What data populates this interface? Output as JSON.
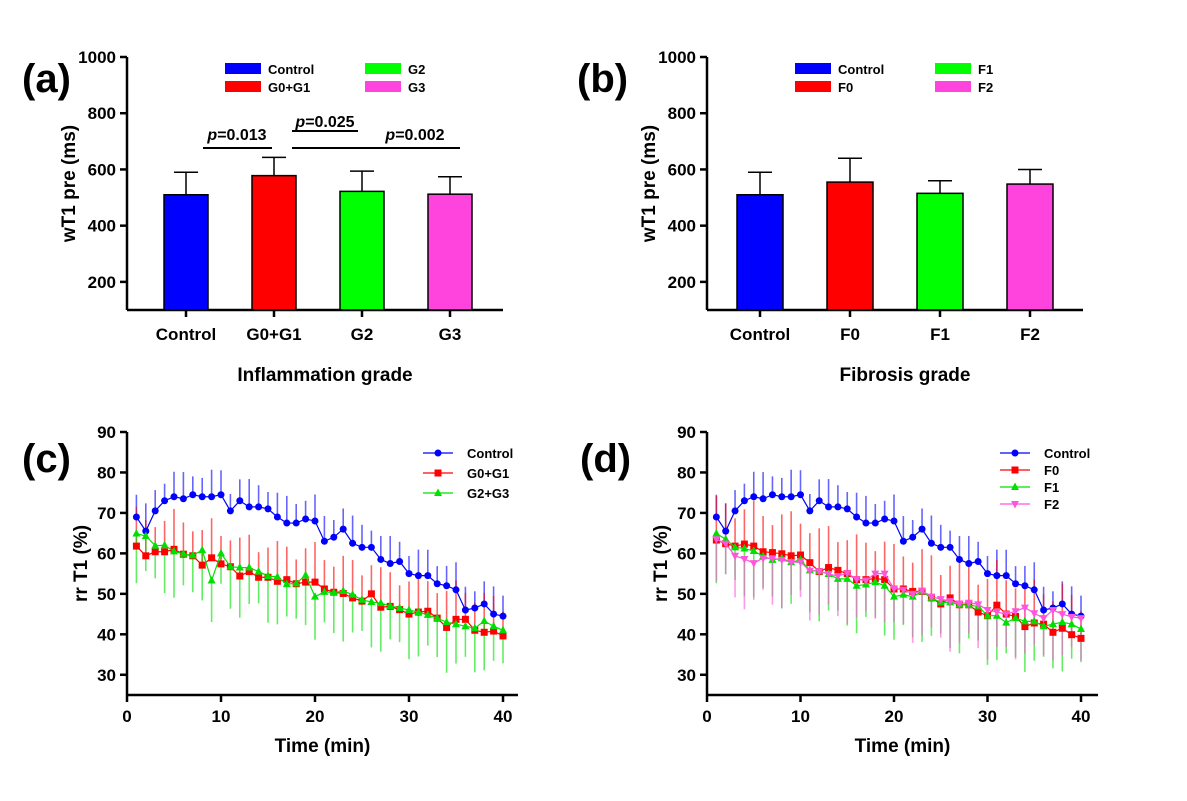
{
  "chart_data": [
    {
      "panel_label": "(a)",
      "type": "bar",
      "xlabel": "Inflammation grade",
      "ylabel": "wT1 pre  (ms)",
      "ylim": [
        100,
        1000
      ],
      "yticks": [
        200,
        400,
        600,
        800,
        1000
      ],
      "categories": [
        "Control",
        "G0+G1",
        "G2",
        "G3"
      ],
      "values": [
        510,
        578,
        522,
        512
      ],
      "errors": [
        80,
        65,
        72,
        62
      ],
      "colors": [
        "#0000ff",
        "#ff0000",
        "#00ff00",
        "#ff44dd"
      ],
      "legend": [
        "Control",
        "G0+G1",
        "G2",
        "G3"
      ],
      "annotations": [
        {
          "prefix": "p",
          "text": "=0.013",
          "from": "Control",
          "to": "G0+G1"
        },
        {
          "prefix": "p",
          "text": "=0.025",
          "from": "G0+G1",
          "to": "G2"
        },
        {
          "prefix": "p",
          "text": "=0.002",
          "from": "G0+G1",
          "to": "G3"
        }
      ]
    },
    {
      "panel_label": "(b)",
      "type": "bar",
      "xlabel": "Fibrosis grade",
      "ylabel": "wT1 pre  (ms)",
      "ylim": [
        100,
        1000
      ],
      "yticks": [
        200,
        400,
        600,
        800,
        1000
      ],
      "categories": [
        "Control",
        "F0",
        "F1",
        "F2"
      ],
      "values": [
        510,
        555,
        515,
        548
      ],
      "errors": [
        80,
        85,
        45,
        52
      ],
      "colors": [
        "#0000ff",
        "#ff0000",
        "#00ff00",
        "#ff44dd"
      ],
      "legend": [
        "Control",
        "F0",
        "F1",
        "F2"
      ]
    },
    {
      "panel_label": "(c)",
      "type": "line",
      "xlabel": "Time (min)",
      "ylabel": "rr T1 (%)",
      "xlim": [
        0,
        41.5
      ],
      "ylim": [
        25,
        90
      ],
      "xticks": [
        0,
        10,
        20,
        30,
        40
      ],
      "yticks": [
        30,
        40,
        50,
        60,
        70,
        80,
        90
      ],
      "legend_position": "top-right",
      "series": [
        {
          "name": "Control",
          "color": "#0000ff",
          "marker": "circle",
          "error_dir": "up",
          "error": 5.5,
          "values": [
            69,
            65.5,
            70.5,
            73,
            74,
            73.5,
            74.5,
            74,
            74,
            74.5,
            70.5,
            73,
            71.5,
            71.5,
            71,
            69,
            67.5,
            67.5,
            68.5,
            68,
            63,
            64,
            66,
            62.5,
            61.5,
            61.5,
            58.5,
            57.5,
            58,
            55,
            54.5,
            54.5,
            52.5,
            52,
            51,
            46,
            46.5,
            47.5,
            45,
            44.5
          ]
        },
        {
          "name": "G0+G1",
          "color": "#ff0000",
          "marker": "square",
          "error_dir": "up",
          "error": 8,
          "values": [
            61.8,
            59.4,
            60.4,
            60.4,
            61,
            59.8,
            59.4,
            57.1,
            58.9,
            57.4,
            56.7,
            54.4,
            55.5,
            54.1,
            54.1,
            53.1,
            53.5,
            52.5,
            52.9,
            52.9,
            51.2,
            50.4,
            50.1,
            49,
            48.2,
            50,
            46.7,
            46.9,
            46.1,
            45,
            45.5,
            45.7,
            44,
            41.7,
            43.7,
            43.7,
            41,
            40.5,
            40.8,
            39.6
          ]
        },
        {
          "name": "G2+G3",
          "color": "#00e000",
          "marker": "triangle",
          "error_dir": "down",
          "error": 10,
          "values": [
            64.9,
            64.3,
            61.9,
            62,
            60.5,
            59.9,
            59.5,
            60.8,
            53.3,
            60,
            56.7,
            56.5,
            56.5,
            55.5,
            54.4,
            54.2,
            52.4,
            52.6,
            54.6,
            49.3,
            50.5,
            50.3,
            50.7,
            49.8,
            48.5,
            48,
            47.7,
            47,
            46.5,
            46,
            45.5,
            44.8,
            44,
            43,
            42.5,
            42,
            41.5,
            43.3,
            42,
            41
          ]
        }
      ]
    },
    {
      "panel_label": "(d)",
      "type": "line",
      "xlabel": "Time (min)",
      "ylabel": "rr T1 (%)",
      "xlim": [
        0,
        41.5
      ],
      "ylim": [
        25,
        90
      ],
      "xticks": [
        0,
        10,
        20,
        30,
        40
      ],
      "yticks": [
        30,
        40,
        50,
        60,
        70,
        80,
        90
      ],
      "legend_position": "top-right",
      "series": [
        {
          "name": "Control",
          "color": "#0000ff",
          "marker": "circle",
          "error_dir": "up",
          "error": 5.5,
          "values": [
            69,
            65.5,
            70.5,
            73,
            74,
            73.5,
            74.5,
            74,
            74,
            74.5,
            70.5,
            73,
            71.5,
            71.5,
            71,
            69,
            67.5,
            67.5,
            68.5,
            68,
            63,
            64,
            66,
            62.5,
            61.5,
            61.5,
            58.5,
            57.5,
            58,
            55,
            54.5,
            54.5,
            52.5,
            52,
            51,
            46,
            46.5,
            47.5,
            45,
            44.5
          ]
        },
        {
          "name": "F0",
          "color": "#ff0000",
          "marker": "square",
          "error_dir": "up",
          "error": 9,
          "values": [
            63.3,
            62.4,
            61.8,
            62.3,
            61.8,
            60.4,
            60.2,
            59.9,
            59.4,
            59.6,
            57.7,
            55.5,
            56.5,
            55.8,
            55,
            53.5,
            53.5,
            53.8,
            53.5,
            51.2,
            51.2,
            50.6,
            50.6,
            49,
            47.5,
            49,
            47.3,
            47.3,
            45.5,
            44.6,
            47.2,
            45,
            44.4,
            41.9,
            42.8,
            42.5,
            40.5,
            41.5,
            39.9,
            39
          ]
        },
        {
          "name": "F1",
          "color": "#00e000",
          "marker": "triangle",
          "error_dir": "down",
          "error": 10,
          "values": [
            64.9,
            63.5,
            61.5,
            61.2,
            60.6,
            59.3,
            58.4,
            58.8,
            57.8,
            58.4,
            55.8,
            55.6,
            54.9,
            53.7,
            53.7,
            52,
            52.3,
            52.9,
            52,
            49.3,
            49.8,
            49.3,
            50.6,
            49,
            47.9,
            47.9,
            47.3,
            47.2,
            46.9,
            44.6,
            44.6,
            42.9,
            44,
            43.2,
            43.2,
            42,
            42.5,
            43,
            42.5,
            41.3
          ]
        },
        {
          "name": "F2",
          "color": "#ff55dd",
          "marker": "triangle-down",
          "error_dir": "down",
          "error": 10,
          "values": [
            63.5,
            62.4,
            59.4,
            58.6,
            57.6,
            58.8,
            58.8,
            58.4,
            57.8,
            57.9,
            55.7,
            55.6,
            54.9,
            54.4,
            55.1,
            53.6,
            53.3,
            55,
            55,
            51.3,
            51,
            50,
            50.8,
            49.3,
            48.7,
            48.2,
            47.6,
            47.8,
            47.4,
            46,
            45.5,
            45,
            45.7,
            46.6,
            45.2,
            44,
            46,
            45,
            44.3,
            44
          ]
        }
      ]
    }
  ]
}
